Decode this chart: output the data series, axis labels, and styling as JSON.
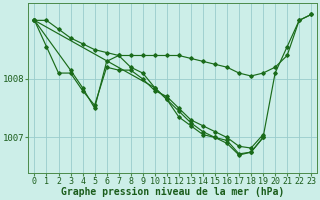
{
  "background_color": "#cceee8",
  "grid_color": "#99cccc",
  "line_color": "#1a6b1a",
  "text_color": "#1a5c1a",
  "x_labels": [
    "0",
    "1",
    "2",
    "3",
    "4",
    "5",
    "6",
    "7",
    "8",
    "9",
    "10",
    "11",
    "12",
    "13",
    "14",
    "15",
    "16",
    "17",
    "18",
    "19",
    "20",
    "21",
    "22",
    "23"
  ],
  "ylim": [
    1006.4,
    1009.3
  ],
  "yticks": [
    1007.0,
    1008.0
  ],
  "series": [
    [
      1009.0,
      1009.0,
      1008.85,
      1008.7,
      1008.6,
      1008.5,
      1008.45,
      1008.4,
      1008.4,
      1008.4,
      1008.4,
      1008.4,
      1008.4,
      1008.35,
      1008.3,
      1008.25,
      1008.2,
      1008.1,
      1008.05,
      1008.1,
      1008.2,
      1008.4,
      1009.0,
      1009.1
    ],
    [
      1009.0,
      1008.55,
      1008.1,
      1008.1,
      1007.8,
      1007.55,
      1008.2,
      1008.15,
      1008.15,
      1008.0,
      1007.8,
      1007.7,
      1007.5,
      1007.3,
      1007.2,
      1007.1,
      1007.0,
      1006.85,
      1006.82,
      1007.05,
      null,
      null,
      null,
      null
    ],
    [
      1009.0,
      null,
      null,
      1008.15,
      1007.85,
      1007.5,
      1008.3,
      1008.4,
      1008.2,
      1008.1,
      1007.85,
      1007.65,
      1007.45,
      1007.25,
      1007.1,
      1007.0,
      1006.95,
      1006.72,
      1006.75,
      1007.0,
      null,
      null,
      null,
      null
    ],
    [
      1009.0,
      null,
      null,
      null,
      null,
      null,
      null,
      null,
      null,
      null,
      1007.85,
      1007.65,
      1007.35,
      1007.2,
      1007.05,
      1007.0,
      1006.9,
      1006.7,
      1006.75,
      1007.0,
      1008.1,
      1008.55,
      1009.0,
      1009.1
    ]
  ],
  "xlabel": "Graphe pression niveau de la mer (hPa)",
  "xlabel_fontsize": 7,
  "tick_fontsize": 6,
  "figwidth": 3.2,
  "figheight": 2.0,
  "dpi": 100
}
